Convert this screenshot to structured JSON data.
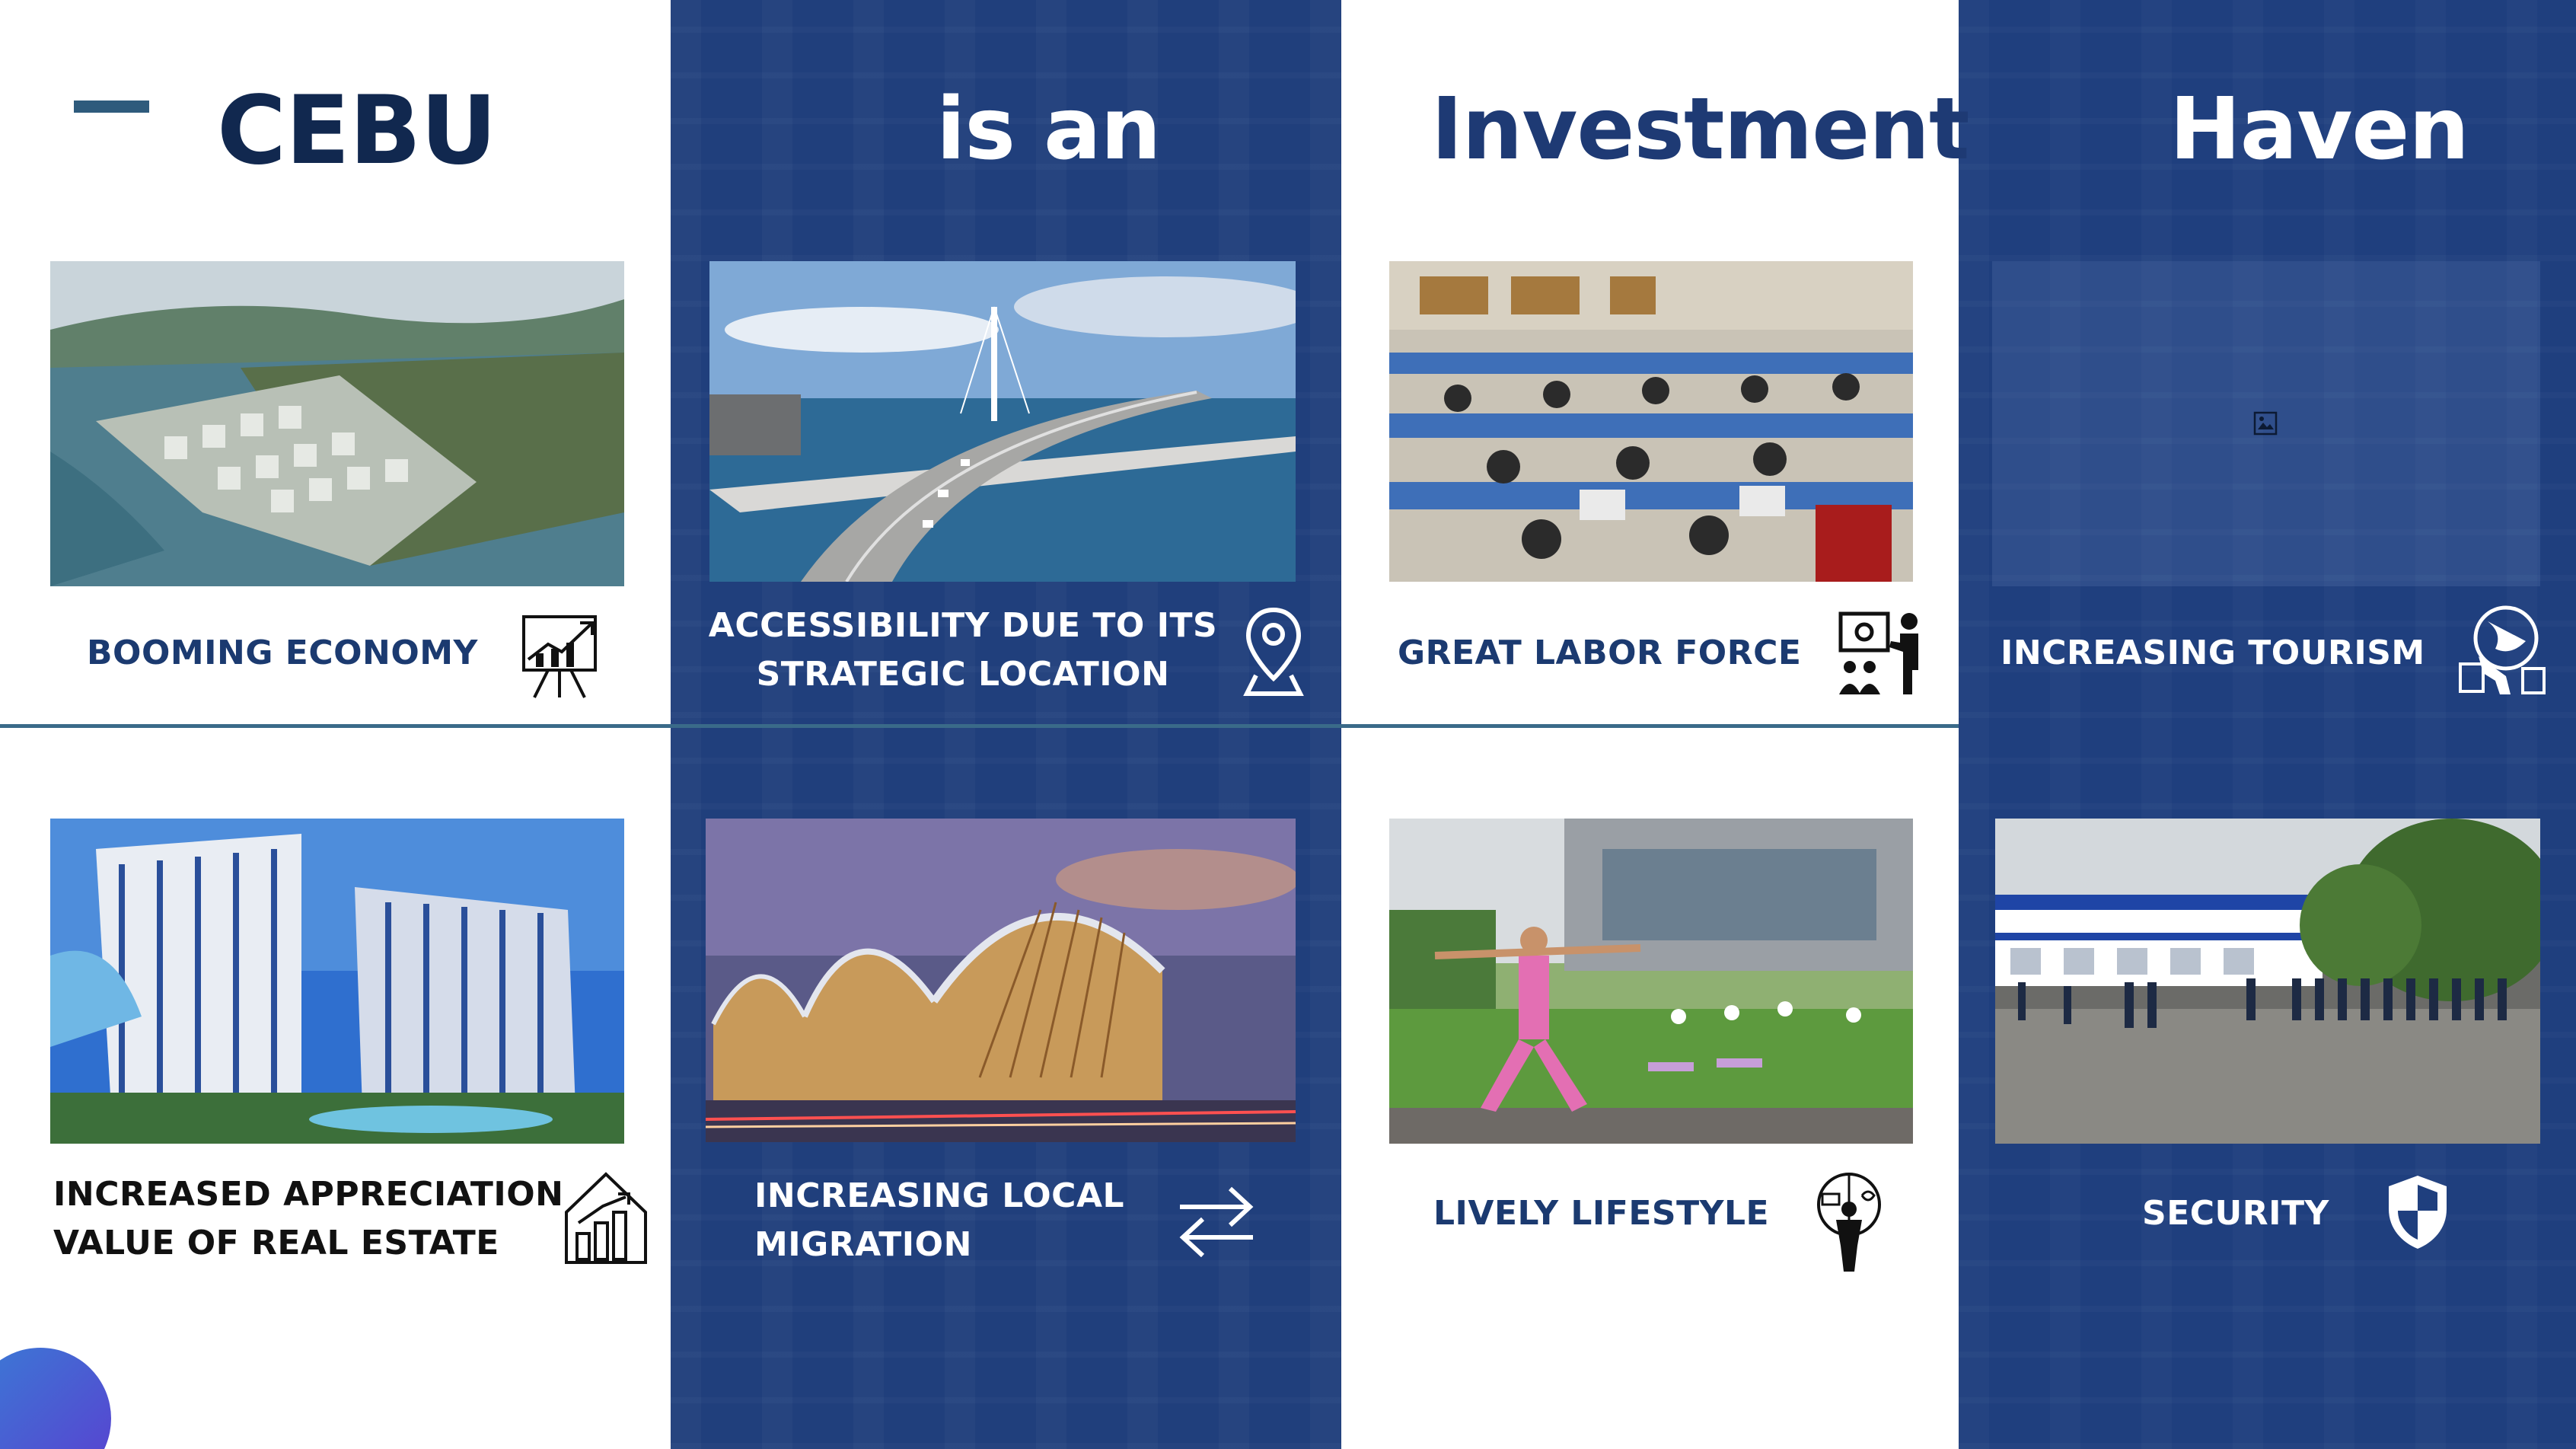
{
  "headings": {
    "cebu": "CEBU",
    "is_an": "is an",
    "investment": "Investment",
    "haven": "Haven"
  },
  "features": {
    "booming_economy": "BOOMING ECONOMY",
    "accessibility_line1": "ACCESSIBILITY DUE TO ITS",
    "accessibility_line2": "STRATEGIC LOCATION",
    "labor_force": "GREAT LABOR FORCE",
    "tourism": "INCREASING TOURISM",
    "appreciation_line1": "INCREASED APPRECIATION",
    "appreciation_line2": "VALUE OF REAL ESTATE",
    "migration_line1": "INCREASING LOCAL",
    "migration_line2": "MIGRATION",
    "lifestyle": "LIVELY LIFESTYLE",
    "security": "SECURITY"
  },
  "icons": {
    "booming_economy": "growth-chart-icon",
    "accessibility": "location-pin-icon",
    "labor_force": "presenter-team-icon",
    "tourism": "globe-travel-icon",
    "appreciation": "house-chart-icon",
    "migration": "exchange-arrows-icon",
    "lifestyle": "person-wellbeing-icon",
    "security": "shield-icon",
    "broken_image": "broken-image-icon"
  },
  "colors": {
    "dark_navy": "#11284f",
    "column_blue": "#203f7c",
    "accent_teal": "#2e5b7c"
  }
}
